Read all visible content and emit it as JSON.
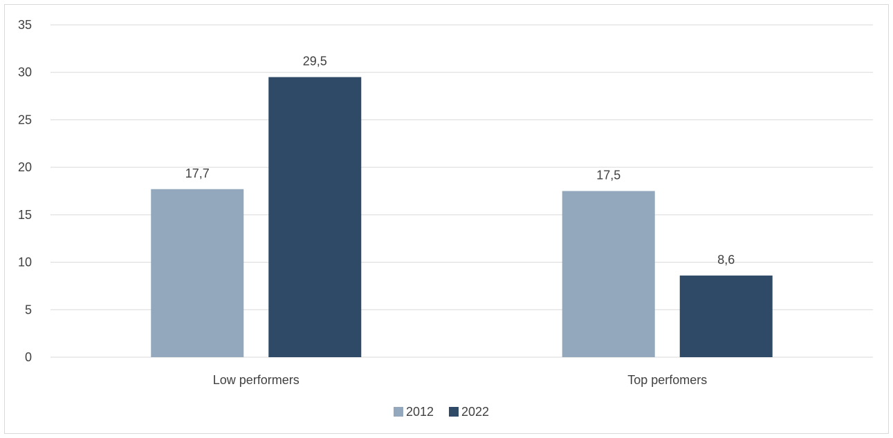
{
  "chart_data": {
    "type": "bar",
    "categories": [
      "Low performers",
      "Top perfomers"
    ],
    "series": [
      {
        "name": "2012",
        "values": [
          17.7,
          17.5
        ],
        "labels": [
          "17,7",
          "17,5"
        ],
        "color": "#93a8bc"
      },
      {
        "name": "2022",
        "values": [
          29.5,
          8.6
        ],
        "labels": [
          "29,5",
          "8,6"
        ],
        "color": "#2f4a66"
      }
    ],
    "title": "",
    "xlabel": "",
    "ylabel": "",
    "ylim": [
      0,
      35
    ],
    "yticks": [
      "0",
      "5",
      "10",
      "15",
      "20",
      "25",
      "30",
      "35"
    ],
    "grid": true,
    "legend_position": "bottom"
  }
}
